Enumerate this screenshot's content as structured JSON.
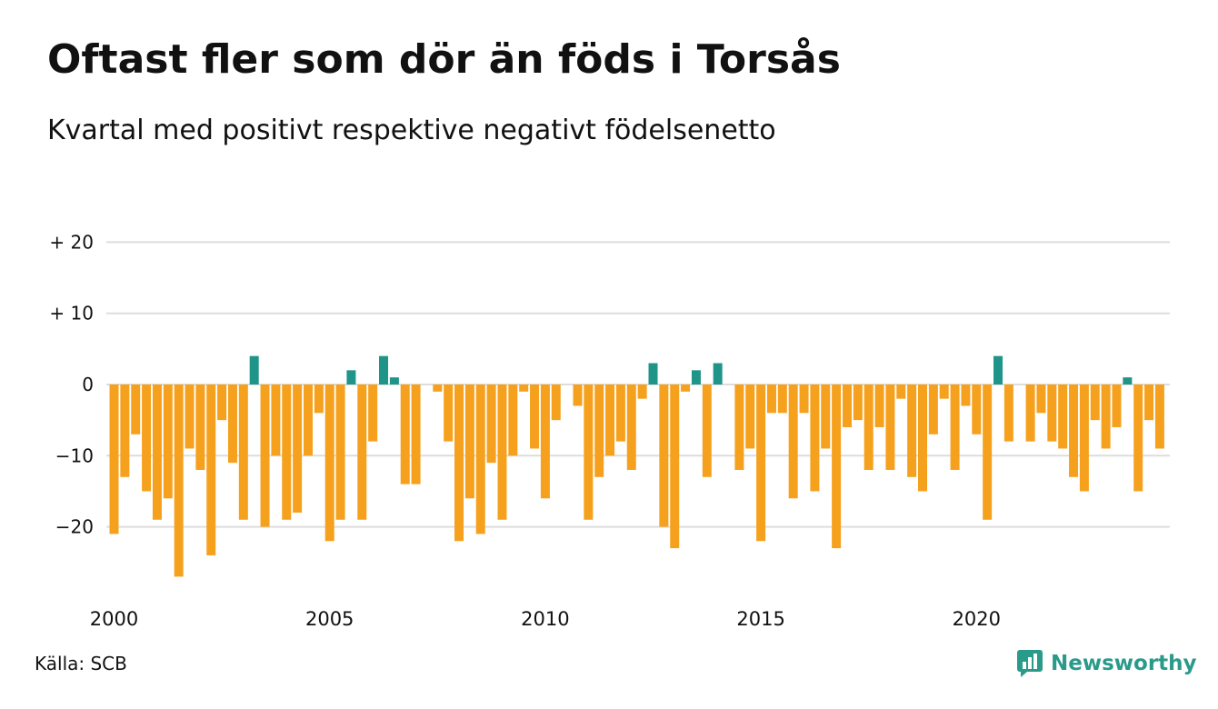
{
  "title": "Oftast fler som dör än föds i Torsås",
  "subtitle": "Kvartal med positivt respektive negativt födelsenetto",
  "source": "Källa: SCB",
  "brand": "Newsworthy",
  "colors": {
    "positive": "#1f9488",
    "negative": "#f6a11d",
    "grid": "#dddddd",
    "brand": "#2a9a8a"
  },
  "chart_data": {
    "type": "bar",
    "ylim": [
      -29,
      22
    ],
    "yticks": [
      20,
      10,
      0,
      -10,
      -20
    ],
    "ytick_labels": [
      "+ 20",
      "+ 10",
      "0",
      "−10",
      "−20"
    ],
    "xticks": [
      2000,
      2005,
      2010,
      2015,
      2020
    ],
    "x_start": "2000 Q1",
    "frequency": "quarter",
    "values": [
      -21,
      -13,
      -7,
      -15,
      -19,
      -16,
      -27,
      -9,
      -12,
      -24,
      -5,
      -11,
      -19,
      4,
      -20,
      -10,
      -19,
      -18,
      -10,
      -4,
      -22,
      -19,
      2,
      -19,
      -8,
      4,
      1,
      -14,
      -14,
      0,
      -1,
      -8,
      -22,
      -16,
      -21,
      -11,
      -19,
      -10,
      -1,
      -9,
      -16,
      -5,
      0,
      -3,
      -19,
      -13,
      -10,
      -8,
      -12,
      -2,
      3,
      -20,
      -23,
      -1,
      2,
      -13,
      3,
      0,
      -12,
      -9,
      -22,
      -4,
      -4,
      -16,
      -4,
      -15,
      -9,
      -23,
      -6,
      -5,
      -12,
      -6,
      -12,
      -2,
      -13,
      -15,
      -7,
      -2,
      -12,
      -3,
      -7,
      -19,
      4,
      -8,
      0,
      -8,
      -4,
      -8,
      -9,
      -13,
      -15,
      -5,
      -9,
      -6,
      1,
      -15,
      -5,
      -9
    ]
  }
}
